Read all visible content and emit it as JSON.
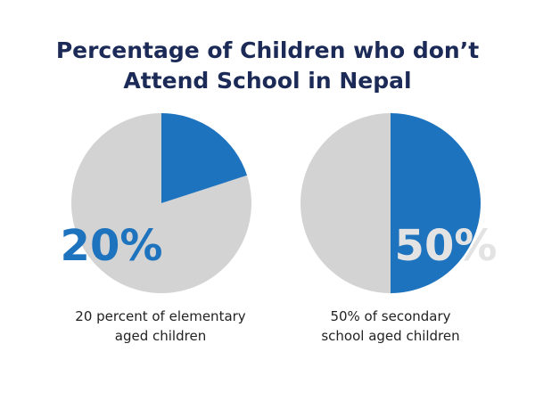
{
  "chart_data": {
    "type": "pie",
    "title": {
      "line1": "Percentage of Children who don’t",
      "line2": "Attend School in Nepal"
    },
    "charts": [
      {
        "name": "elementary",
        "value": 20,
        "remainder": 80,
        "label": "20%",
        "caption": {
          "line1": "20 percent of elementary",
          "line2": "aged children"
        }
      },
      {
        "name": "secondary",
        "value": 50,
        "remainder": 50,
        "label": "50%",
        "caption": {
          "line1": "50% of secondary",
          "line2": "school aged children"
        }
      }
    ]
  },
  "colors": {
    "highlight": "#1e73be",
    "rest": "#d3d3d3",
    "title": "#1b2a56",
    "label_on_gray": "#1e73be",
    "label_on_blue": "#e3e3e3"
  }
}
